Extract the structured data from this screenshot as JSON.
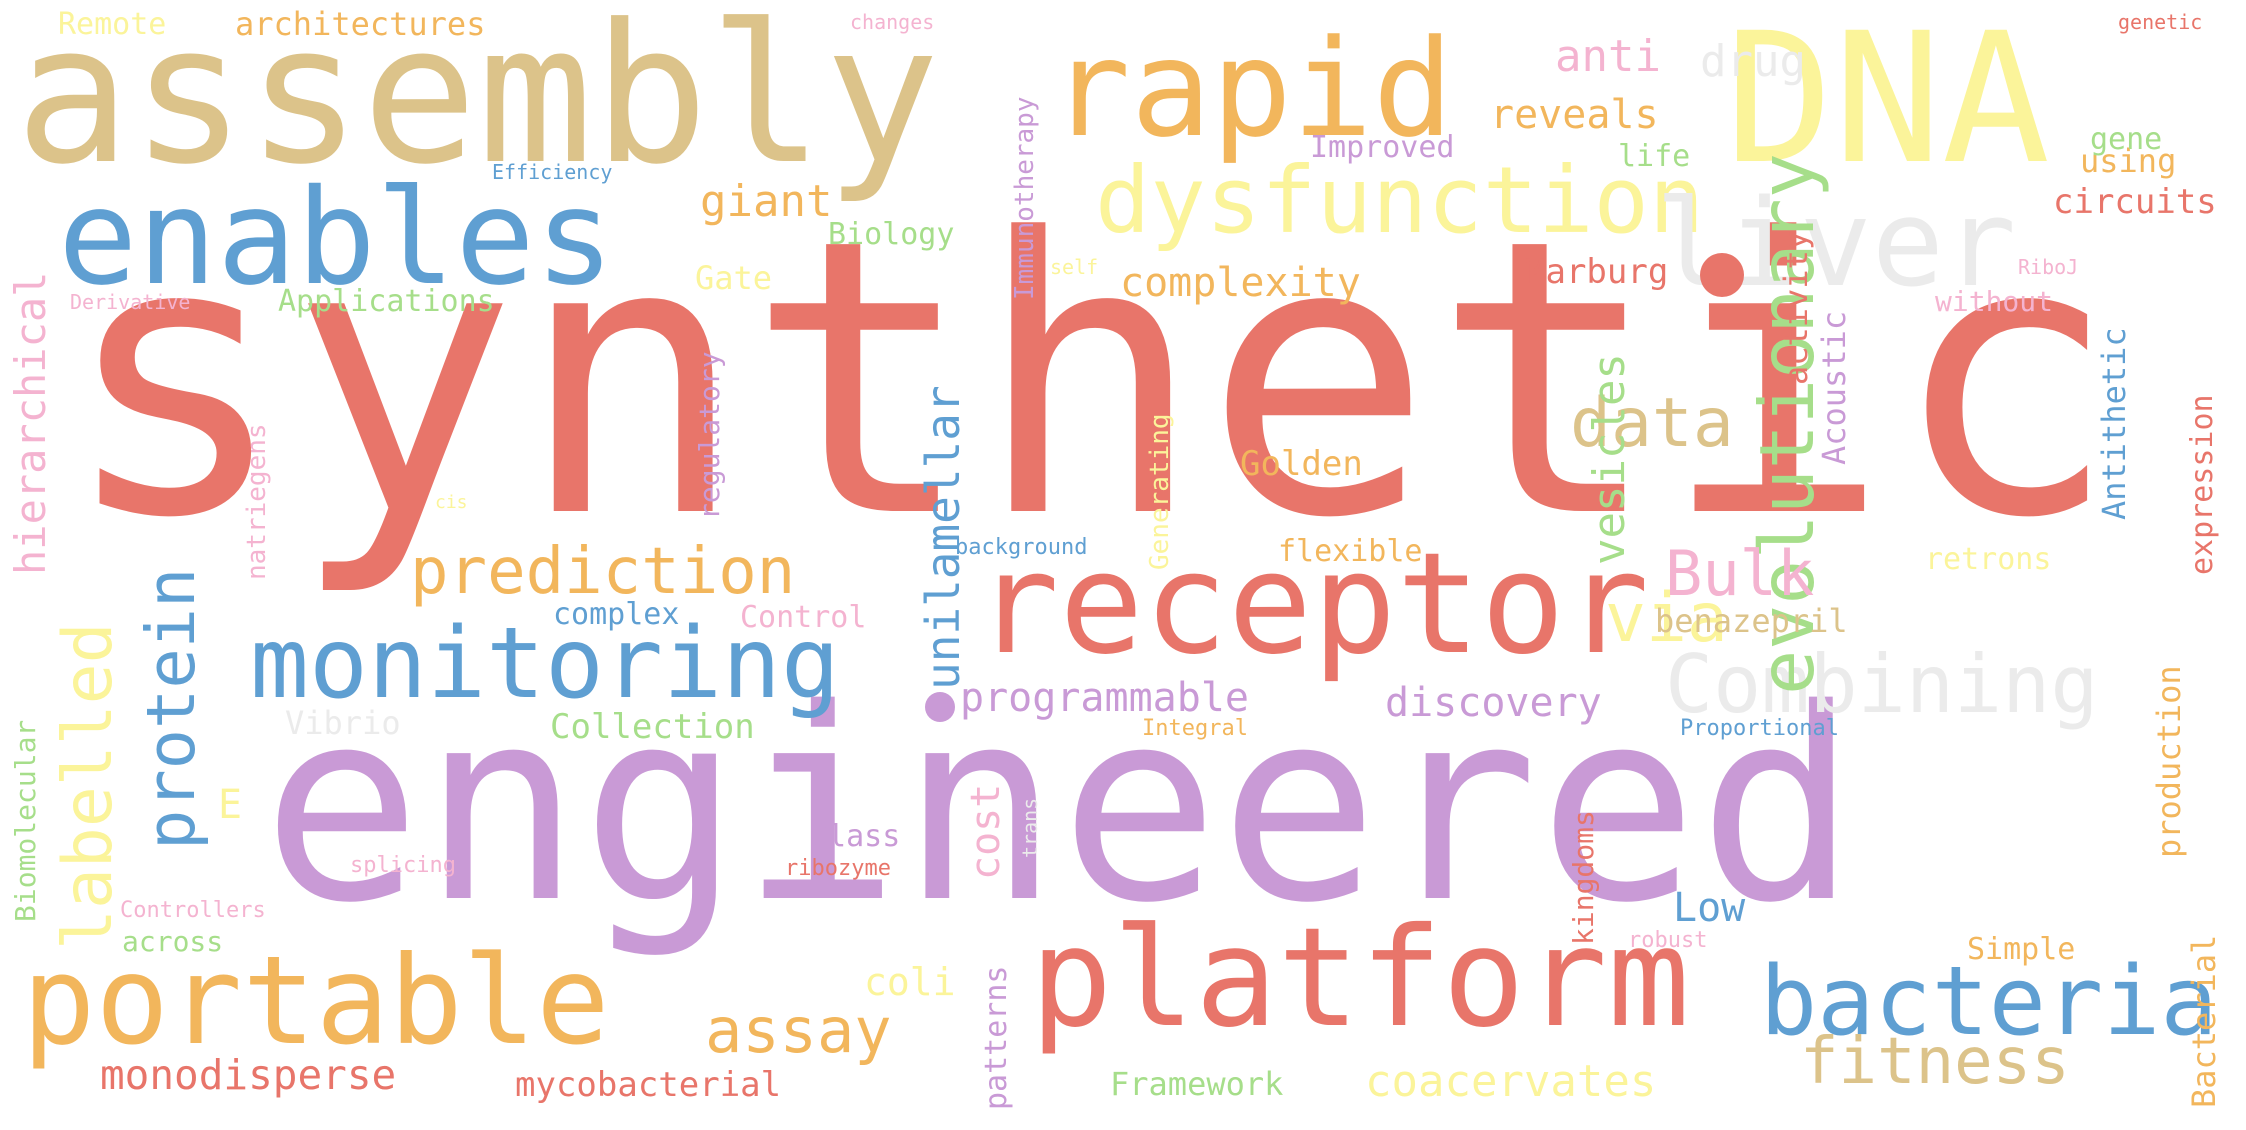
{
  "palette": {
    "red": "#e8756a",
    "purple": "#c99ad6",
    "tan": "#dcc38a",
    "orange": "#f2b65c",
    "blue": "#5f9fd2",
    "yellow": "#fbf49a",
    "pink": "#f4b3d0",
    "green": "#a6de8a",
    "lightgray": "#ebebeb"
  },
  "words": [
    {
      "text": "synthetic",
      "color": "red"
    },
    {
      "text": "engineered",
      "color": "purple"
    },
    {
      "text": "assembly",
      "color": "tan"
    },
    {
      "text": "DNA",
      "color": "yellow"
    },
    {
      "text": "rapid",
      "color": "orange"
    },
    {
      "text": "enables",
      "color": "blue"
    },
    {
      "text": "receptor",
      "color": "red"
    },
    {
      "text": "platform",
      "color": "red"
    },
    {
      "text": "portable",
      "color": "orange"
    },
    {
      "text": "monitoring",
      "color": "blue"
    },
    {
      "text": "dysfunction",
      "color": "yellow"
    },
    {
      "text": "liver",
      "color": "lightgray"
    },
    {
      "text": "bacteria",
      "color": "blue"
    },
    {
      "text": "Combining",
      "color": "lightgray"
    },
    {
      "text": "evolutionary",
      "color": "green"
    },
    {
      "text": "prediction",
      "color": "orange"
    },
    {
      "text": "protein",
      "color": "blue"
    },
    {
      "text": "fitness",
      "color": "tan"
    },
    {
      "text": "labelled",
      "color": "yellow"
    },
    {
      "text": "data",
      "color": "tan"
    },
    {
      "text": "via",
      "color": "yellow"
    },
    {
      "text": "Bulk",
      "color": "pink"
    },
    {
      "text": "assay",
      "color": "orange"
    },
    {
      "text": "hierarchical",
      "color": "pink"
    },
    {
      "text": "unilamellar",
      "color": "blue"
    },
    {
      "text": "vesicles",
      "color": "green"
    },
    {
      "text": "monodisperse",
      "color": "red"
    },
    {
      "text": "coacervates",
      "color": "yellow"
    },
    {
      "text": "programmable",
      "color": "purple"
    },
    {
      "text": "discovery",
      "color": "purple"
    },
    {
      "text": "complexity",
      "color": "orange"
    },
    {
      "text": "reveals",
      "color": "orange"
    },
    {
      "text": "giant",
      "color": "orange"
    },
    {
      "text": "drug",
      "color": "lightgray"
    },
    {
      "text": "anti",
      "color": "pink"
    },
    {
      "text": "mycobacterial",
      "color": "red"
    },
    {
      "text": "Marburg",
      "color": "red"
    },
    {
      "text": "cost",
      "color": "pink"
    },
    {
      "text": "Low",
      "color": "blue"
    },
    {
      "text": "coli",
      "color": "yellow"
    },
    {
      "text": "Golden",
      "color": "orange"
    },
    {
      "text": "Collection",
      "color": "green"
    },
    {
      "text": "complex",
      "color": "blue"
    },
    {
      "text": "Control",
      "color": "pink"
    },
    {
      "text": "benazepril",
      "color": "tan"
    },
    {
      "text": "Framework",
      "color": "green"
    },
    {
      "text": "patterns",
      "color": "purple"
    },
    {
      "text": "kingdoms",
      "color": "red"
    },
    {
      "text": "Antithetic",
      "color": "blue"
    },
    {
      "text": "expression",
      "color": "red"
    },
    {
      "text": "production",
      "color": "orange"
    },
    {
      "text": "Bacterial",
      "color": "orange"
    },
    {
      "text": "activity",
      "color": "red"
    },
    {
      "text": "Acoustic",
      "color": "purple"
    },
    {
      "text": "circuits",
      "color": "red"
    },
    {
      "text": "using",
      "color": "orange"
    },
    {
      "text": "gene",
      "color": "green"
    },
    {
      "text": "life",
      "color": "green"
    },
    {
      "text": "Improved",
      "color": "purple"
    },
    {
      "text": "Immunotherapy",
      "color": "purple"
    },
    {
      "text": "Biology",
      "color": "green"
    },
    {
      "text": "Gate",
      "color": "yellow"
    },
    {
      "text": "Applications",
      "color": "green"
    },
    {
      "text": "architectures",
      "color": "orange"
    },
    {
      "text": "Remote",
      "color": "yellow"
    },
    {
      "text": "changes",
      "color": "pink"
    },
    {
      "text": "genetic",
      "color": "red"
    },
    {
      "text": "Efficiency",
      "color": "blue"
    },
    {
      "text": "Derivative",
      "color": "pink"
    },
    {
      "text": "self",
      "color": "yellow"
    },
    {
      "text": "RiboJ",
      "color": "pink"
    },
    {
      "text": "without",
      "color": "pink"
    },
    {
      "text": "regulatory",
      "color": "purple"
    },
    {
      "text": "natriegens",
      "color": "pink"
    },
    {
      "text": "Generating",
      "color": "yellow"
    },
    {
      "text": "flexible",
      "color": "orange"
    },
    {
      "text": "background",
      "color": "blue"
    },
    {
      "text": "retrons",
      "color": "yellow"
    },
    {
      "text": "cis",
      "color": "yellow"
    },
    {
      "text": "Vibrio",
      "color": "lightgray"
    },
    {
      "text": "E",
      "color": "yellow"
    },
    {
      "text": "Integral",
      "color": "orange"
    },
    {
      "text": "Proportional",
      "color": "blue"
    },
    {
      "text": "Class",
      "color": "purple"
    },
    {
      "text": "trans",
      "color": "lightgray"
    },
    {
      "text": "Biomolecular",
      "color": "green"
    },
    {
      "text": "splicing",
      "color": "pink"
    },
    {
      "text": "ribozyme",
      "color": "red"
    },
    {
      "text": "Controllers",
      "color": "pink"
    },
    {
      "text": "across",
      "color": "green"
    },
    {
      "text": "robust",
      "color": "pink"
    },
    {
      "text": "Simple",
      "color": "orange"
    }
  ]
}
